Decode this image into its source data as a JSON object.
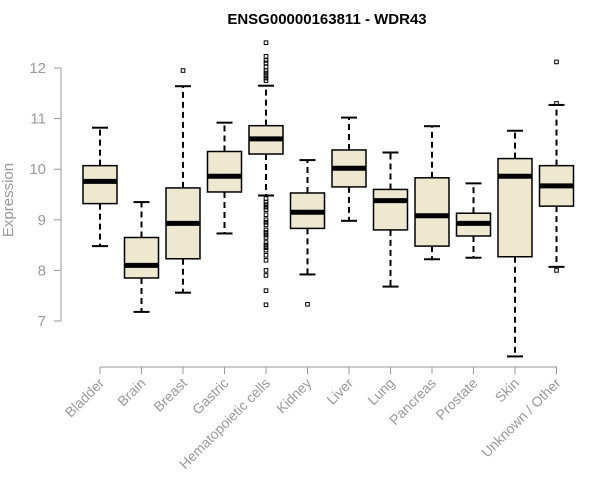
{
  "chart_data": {
    "type": "boxplot",
    "title": "ENSG00000163811 - WDR43",
    "xlabel": "",
    "ylabel": "Expression",
    "ylim": [
      6.0,
      12.6
    ],
    "yticks": [
      7,
      8,
      9,
      10,
      11,
      12
    ],
    "box_color": "#EEE8D0",
    "categories": [
      "Bladder",
      "Brain",
      "Breast",
      "Gastric",
      "Hematopoietic cells",
      "Kidney",
      "Liver",
      "Lung",
      "Pancreas",
      "Prostate",
      "Skin",
      "Unknown / Other"
    ],
    "boxes": [
      {
        "min": 8.48,
        "q1": 9.32,
        "median": 9.76,
        "q3": 10.07,
        "max": 10.82,
        "outliers": []
      },
      {
        "min": 7.18,
        "q1": 7.85,
        "median": 8.1,
        "q3": 8.65,
        "max": 9.35,
        "outliers": []
      },
      {
        "min": 7.56,
        "q1": 8.23,
        "median": 8.93,
        "q3": 9.63,
        "max": 11.64,
        "outliers": [
          11.95
        ]
      },
      {
        "min": 8.73,
        "q1": 9.55,
        "median": 9.86,
        "q3": 10.35,
        "max": 10.92,
        "outliers": []
      },
      {
        "min": 9.48,
        "q1": 10.3,
        "median": 10.6,
        "q3": 10.86,
        "max": 11.65,
        "outliers": [
          12.5,
          12.23,
          12.15,
          12.1,
          12.02,
          11.95,
          11.9,
          11.85,
          11.8,
          11.75,
          9.42,
          9.35,
          9.3,
          9.25,
          9.2,
          9.1,
          9.0,
          8.95,
          8.9,
          8.8,
          8.75,
          8.7,
          8.65,
          8.55,
          8.5,
          8.45,
          8.4,
          8.3,
          8.2,
          8.0,
          7.9,
          7.6,
          7.32
        ]
      },
      {
        "min": 7.92,
        "q1": 8.83,
        "median": 9.15,
        "q3": 9.53,
        "max": 10.18,
        "outliers": [
          7.33
        ]
      },
      {
        "min": 8.98,
        "q1": 9.65,
        "median": 10.02,
        "q3": 10.38,
        "max": 11.02,
        "outliers": []
      },
      {
        "min": 7.68,
        "q1": 8.8,
        "median": 9.38,
        "q3": 9.6,
        "max": 10.33,
        "outliers": []
      },
      {
        "min": 8.22,
        "q1": 8.48,
        "median": 9.08,
        "q3": 9.83,
        "max": 10.85,
        "outliers": []
      },
      {
        "min": 8.25,
        "q1": 8.68,
        "median": 8.93,
        "q3": 9.13,
        "max": 9.72,
        "outliers": []
      },
      {
        "min": 6.3,
        "q1": 8.27,
        "median": 9.86,
        "q3": 10.21,
        "max": 10.76,
        "outliers": []
      },
      {
        "min": 8.07,
        "q1": 9.27,
        "median": 9.67,
        "q3": 10.07,
        "max": 11.27,
        "outliers": [
          12.12,
          11.3,
          8.0
        ]
      }
    ]
  }
}
